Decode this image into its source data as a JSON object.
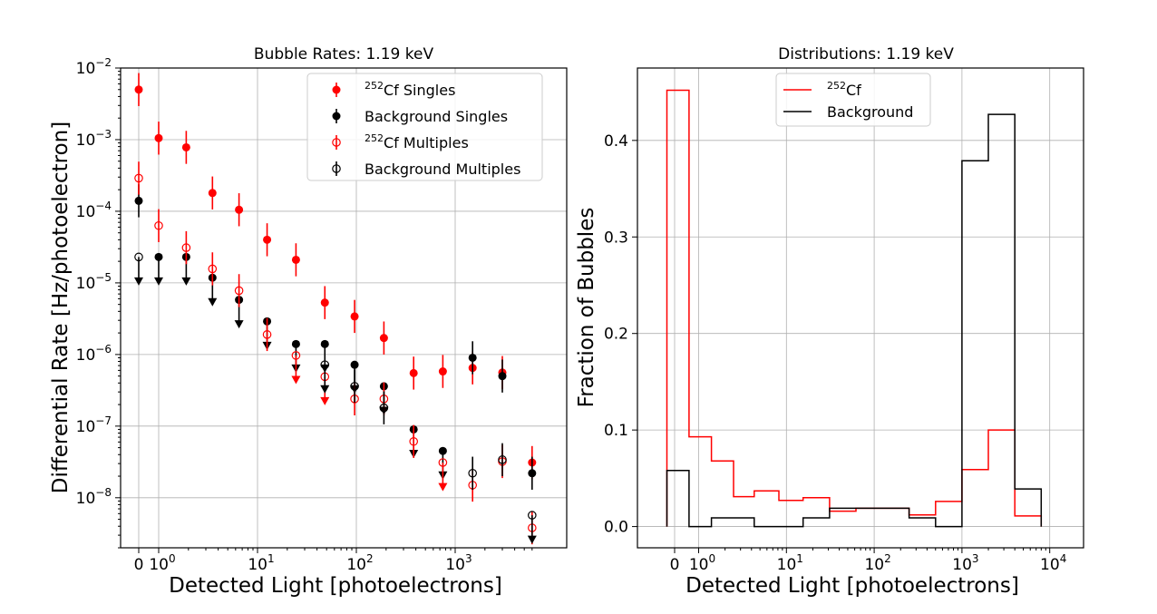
{
  "chart_data": [
    {
      "type": "scatter",
      "title": "Bubble Rates: 1.19 keV",
      "xlabel": "Detected Light [photoelectrons]",
      "ylabel": "Differential Rate [Hz/photoelectron]",
      "xscale": "symlog",
      "yscale": "log",
      "ylim": [
        2e-09,
        0.01
      ],
      "xticks": [
        "0",
        "10^0",
        "10^1",
        "10^2",
        "10^3"
      ],
      "yticks": [
        "10^-8",
        "10^-7",
        "10^-6",
        "10^-5",
        "10^-4",
        "10^-3",
        "10^-2"
      ],
      "legend_position": "top-right",
      "x": [
        0,
        1,
        1.9,
        3.5,
        6.5,
        12.5,
        24.5,
        48,
        96,
        190,
        380,
        750,
        1500,
        3000,
        6000
      ],
      "series": [
        {
          "name": "252Cf Singles",
          "legend": "²⁵²Cf Singles",
          "color": "#ff0000",
          "marker": "filled",
          "values": [
            0.005,
            0.00105,
            0.00078,
            0.00018,
            0.000105,
            4e-05,
            2.1e-05,
            5.3e-06,
            3.4e-06,
            1.7e-06,
            5.5e-07,
            5.8e-07,
            6.5e-07,
            5.6e-07,
            3.1e-08
          ],
          "upper_limit": [
            false,
            false,
            false,
            false,
            false,
            false,
            false,
            false,
            false,
            false,
            false,
            false,
            false,
            false,
            false
          ]
        },
        {
          "name": "Background Singles",
          "legend": "Background Singles",
          "color": "#000000",
          "marker": "filled",
          "values": [
            0.00014,
            2.3e-05,
            2.3e-05,
            1.18e-05,
            5.8e-06,
            2.9e-06,
            1.4e-06,
            1.4e-06,
            7.2e-07,
            3.6e-07,
            9e-08,
            4.5e-08,
            9e-07,
            5e-07,
            2.2e-08
          ],
          "upper_limit": [
            false,
            true,
            true,
            true,
            true,
            true,
            true,
            true,
            true,
            true,
            true,
            true,
            false,
            false,
            false
          ]
        },
        {
          "name": "252Cf Multiples",
          "legend": "²⁵²Cf Multiples",
          "color": "#ff0000",
          "marker": "open",
          "values": [
            0.00029,
            6.3e-05,
            3.1e-05,
            1.57e-05,
            7.8e-06,
            1.9e-06,
            9.7e-07,
            4.9e-07,
            2.4e-07,
            2.4e-07,
            6.1e-08,
            3.1e-08,
            1.5e-08,
            3.2e-08,
            3.8e-09
          ],
          "upper_limit": [
            false,
            false,
            false,
            false,
            false,
            false,
            true,
            true,
            false,
            false,
            false,
            true,
            false,
            false,
            false
          ]
        },
        {
          "name": "Background Multiples",
          "legend": "Background Multiples",
          "color": "#000000",
          "marker": "open",
          "values": [
            2.3e-05,
            null,
            null,
            null,
            null,
            null,
            null,
            7.2e-07,
            3.6e-07,
            1.8e-07,
            null,
            null,
            2.2e-08,
            3.4e-08,
            5.7e-09
          ],
          "upper_limit": [
            true,
            false,
            false,
            false,
            false,
            false,
            false,
            true,
            false,
            false,
            false,
            false,
            false,
            false,
            true
          ]
        }
      ]
    },
    {
      "type": "histogram",
      "title": "Distributions: 1.19 keV",
      "xlabel": "Detected Light [photoelectrons]",
      "ylabel": "Fraction of Bubbles",
      "xscale": "symlog",
      "ylim": [
        -0.022,
        0.475
      ],
      "xticks": [
        "0",
        "10^0",
        "10^1",
        "10^2",
        "10^3",
        "10^4"
      ],
      "yticks": [
        "0.0",
        "0.1",
        "0.2",
        "0.3",
        "0.4"
      ],
      "legend_position": "top-center",
      "bin_edges": [
        -0.32,
        0.6,
        1.4,
        2.5,
        4.3,
        8.2,
        15.5,
        31,
        62,
        125,
        250,
        500,
        1000,
        2000,
        4000,
        8000
      ],
      "series": [
        {
          "name": "252Cf",
          "legend": "²⁵²Cf",
          "color": "#ff0000",
          "values": [
            0.452,
            0.093,
            0.068,
            0.031,
            0.037,
            0.027,
            0.03,
            0.016,
            0.019,
            0.019,
            0.012,
            0.026,
            0.059,
            0.1,
            0.011
          ]
        },
        {
          "name": "Background",
          "legend": "Background",
          "color": "#000000",
          "values": [
            0.058,
            0.0,
            0.009,
            0.009,
            0.0,
            0.0,
            0.009,
            0.019,
            0.019,
            0.019,
            0.009,
            0.0,
            0.379,
            0.427,
            0.039
          ]
        }
      ]
    }
  ]
}
